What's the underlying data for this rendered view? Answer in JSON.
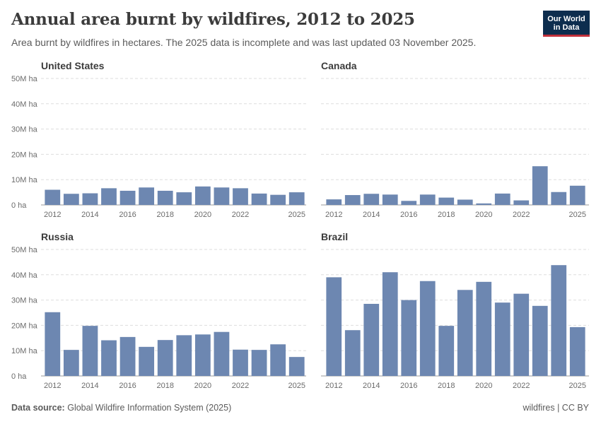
{
  "header": {
    "title": "Annual area burnt by wildfires, 2012 to 2025",
    "subtitle": "Area burnt by wildfires in hectares. The 2025 data is incomplete and was last updated 03 November 2025.",
    "logo_line1": "Our World",
    "logo_line2": "in Data"
  },
  "footer": {
    "source_label": "Data source:",
    "source_text": "Global Wildfire Information System (2025)",
    "right_text": "wildfires | CC BY"
  },
  "colors": {
    "bar": "#6d87b1",
    "grid": "#dddddd",
    "axis": "#999999"
  },
  "chart_data": [
    {
      "type": "bar",
      "title": "United States",
      "x": [
        2012,
        2013,
        2014,
        2015,
        2016,
        2017,
        2018,
        2019,
        2020,
        2021,
        2022,
        2023,
        2024,
        2025
      ],
      "values": [
        6.0,
        4.4,
        4.6,
        6.6,
        5.6,
        6.9,
        5.6,
        5.0,
        7.3,
        6.9,
        6.6,
        4.5,
        4.0,
        5.0
      ],
      "unit": "M ha",
      "ylim": [
        0,
        50
      ],
      "yticks": [
        "0 ha",
        "10M ha",
        "20M ha",
        "30M ha",
        "40M ha",
        "50M ha"
      ],
      "xticks": [
        "2012",
        "2014",
        "2016",
        "2018",
        "2020",
        "2022",
        "2025"
      ]
    },
    {
      "type": "bar",
      "title": "Canada",
      "x": [
        2012,
        2013,
        2014,
        2015,
        2016,
        2017,
        2018,
        2019,
        2020,
        2021,
        2022,
        2023,
        2024,
        2025
      ],
      "values": [
        2.2,
        3.9,
        4.4,
        4.1,
        1.6,
        4.1,
        2.9,
        2.1,
        0.6,
        4.5,
        1.8,
        15.3,
        5.1,
        7.6
      ],
      "unit": "M ha",
      "ylim": [
        0,
        50
      ],
      "yticks": [],
      "xticks": [
        "2012",
        "2014",
        "2016",
        "2018",
        "2020",
        "2022",
        "2025"
      ]
    },
    {
      "type": "bar",
      "title": "Russia",
      "x": [
        2012,
        2013,
        2014,
        2015,
        2016,
        2017,
        2018,
        2019,
        2020,
        2021,
        2022,
        2023,
        2024,
        2025
      ],
      "values": [
        25.2,
        10.3,
        19.8,
        14.1,
        15.4,
        11.5,
        14.2,
        16.1,
        16.4,
        17.4,
        10.4,
        10.3,
        12.5,
        7.5
      ],
      "unit": "M ha",
      "ylim": [
        0,
        50
      ],
      "yticks": [
        "0 ha",
        "10M ha",
        "20M ha",
        "30M ha",
        "40M ha",
        "50M ha"
      ],
      "xticks": [
        "2012",
        "2014",
        "2016",
        "2018",
        "2020",
        "2022",
        "2025"
      ]
    },
    {
      "type": "bar",
      "title": "Brazil",
      "x": [
        2012,
        2013,
        2014,
        2015,
        2016,
        2017,
        2018,
        2019,
        2020,
        2021,
        2022,
        2023,
        2024,
        2025
      ],
      "values": [
        39.0,
        18.1,
        28.5,
        41.0,
        30.0,
        37.5,
        19.8,
        34.0,
        37.2,
        29.0,
        32.5,
        27.7,
        43.8,
        19.3
      ],
      "unit": "M ha",
      "ylim": [
        0,
        50
      ],
      "yticks": [],
      "xticks": [
        "2012",
        "2014",
        "2016",
        "2018",
        "2020",
        "2022",
        "2025"
      ]
    }
  ]
}
